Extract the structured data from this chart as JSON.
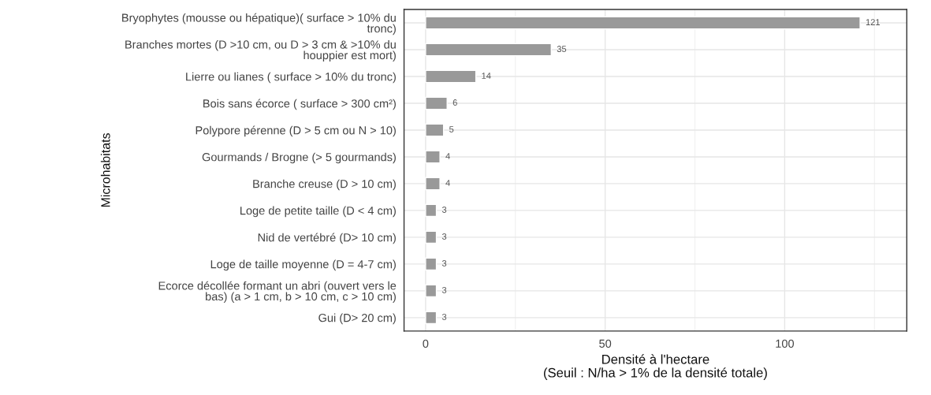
{
  "chart_data": {
    "type": "bar",
    "orientation": "horizontal",
    "xlabel": "Densité à l'hectare\n(Seuil : N/ha > 1% de la densité totale)",
    "ylabel": "Microhabitats",
    "categories": [
      "Bryophytes (mousse ou hépatique)( surface > 10% du\ntronc)",
      "Branches mortes (D >10 cm, ou D > 3 cm & >10% du\nhouppier est mort)",
      "Lierre ou lianes ( surface > 10% du tronc)",
      "Bois sans écorce ( surface > 300 cm²)",
      "Polypore pérenne (D > 5 cm ou N > 10)",
      "Gourmands / Brogne (> 5 gourmands)",
      "Branche creuse (D > 10 cm)",
      "Loge de petite taille (D < 4 cm)",
      "Nid de vertébré (D> 10 cm)",
      "Loge de taille moyenne (D = 4-7 cm)",
      "Ecorce décollée formant un abri (ouvert vers le\nbas) (a > 1 cm, b > 10 cm, c > 10 cm)",
      "Gui (D> 20 cm)"
    ],
    "values": [
      121,
      35,
      14,
      6,
      5,
      4,
      4,
      3,
      3,
      3,
      3,
      3
    ],
    "color": "#999999",
    "data_labels": true,
    "xlim": [
      -6,
      134
    ],
    "xticks": [
      0,
      50,
      100
    ],
    "grid": true,
    "legend": false
  }
}
